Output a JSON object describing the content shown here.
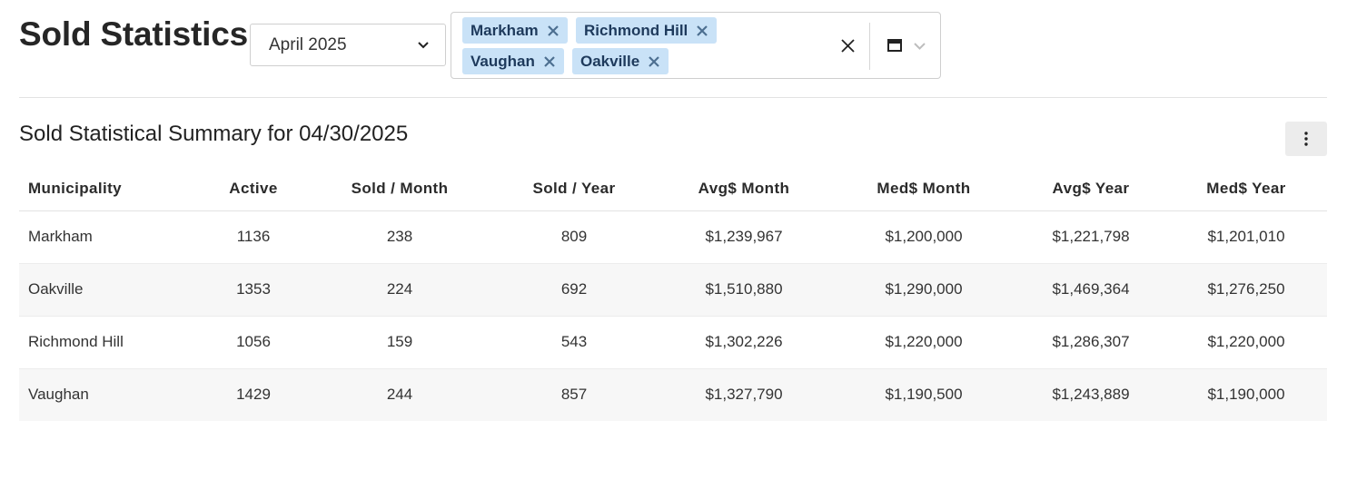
{
  "header": {
    "title": "Sold Statistics",
    "month_select": {
      "value": "April 2025",
      "icon": "chevron-down-icon"
    },
    "municipality_select": {
      "tags": [
        "Markham",
        "Richmond Hill",
        "Vaughan",
        "Oakville"
      ],
      "icons": [
        "close-icon",
        "clear-icon",
        "layout-icon",
        "chevron-down-icon"
      ]
    }
  },
  "summary": {
    "title": "Sold Statistical Summary for 04/30/2025",
    "menu_icon": "kebab-menu-icon"
  },
  "table": {
    "columns": [
      "Municipality",
      "Active",
      "Sold / Month",
      "Sold / Year",
      "Avg$ Month",
      "Med$ Month",
      "Avg$ Year",
      "Med$ Year"
    ],
    "rows": [
      [
        "Markham",
        "1136",
        "238",
        "809",
        "$1,239,967",
        "$1,200,000",
        "$1,221,798",
        "$1,201,010"
      ],
      [
        "Oakville",
        "1353",
        "224",
        "692",
        "$1,510,880",
        "$1,290,000",
        "$1,469,364",
        "$1,276,250"
      ],
      [
        "Richmond Hill",
        "1056",
        "159",
        "543",
        "$1,302,226",
        "$1,220,000",
        "$1,286,307",
        "$1,220,000"
      ],
      [
        "Vaughan",
        "1429",
        "244",
        "857",
        "$1,327,790",
        "$1,190,500",
        "$1,243,889",
        "$1,190,000"
      ]
    ]
  },
  "colors": {
    "tag_bg": "#c9e2f7",
    "tag_text": "#1e3a5c",
    "alt_row": "#f7f7f7"
  }
}
